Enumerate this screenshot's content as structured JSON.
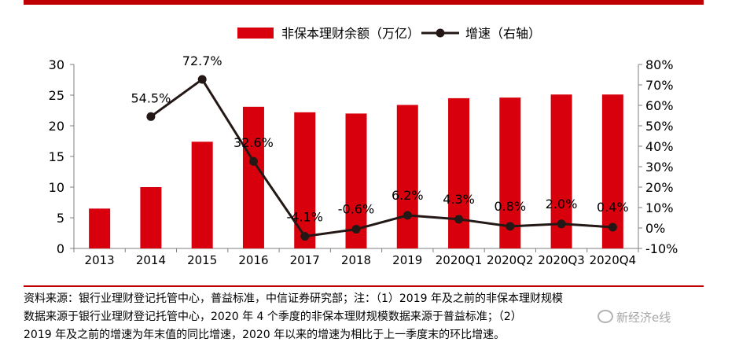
{
  "chart_data": {
    "type": "bar+line",
    "categories": [
      "2013",
      "2014",
      "2015",
      "2016",
      "2017",
      "2018",
      "2019",
      "2020Q1",
      "2020Q2",
      "2020Q3",
      "2020Q4"
    ],
    "series": [
      {
        "name": "非保本理财余额（万亿）",
        "type": "bar",
        "axis": "left",
        "values": [
          6.5,
          10.0,
          17.4,
          23.1,
          22.2,
          22.0,
          23.4,
          24.5,
          24.6,
          25.1,
          25.1
        ]
      },
      {
        "name": "增速（右轴）",
        "type": "line",
        "axis": "right",
        "values": [
          null,
          54.5,
          72.7,
          32.6,
          -4.1,
          -0.6,
          6.2,
          4.3,
          0.8,
          2.0,
          0.4
        ],
        "labels": [
          null,
          "54.5%",
          "72.7%",
          "32.6%",
          "-4.1%",
          "-0.6%",
          "6.2%",
          "4.3%",
          "0.8%",
          "2.0%",
          "0.4%"
        ]
      }
    ],
    "y_left": {
      "min": 0,
      "max": 30,
      "ticks": [
        "0",
        "5",
        "10",
        "15",
        "20",
        "25",
        "30"
      ]
    },
    "y_right": {
      "min": -10,
      "max": 80,
      "ticks": [
        "-10%",
        "0%",
        "10%",
        "20%",
        "30%",
        "40%",
        "50%",
        "60%",
        "70%",
        "80%"
      ]
    },
    "legend": [
      "非保本理财余额（万亿）",
      "增速（右轴）"
    ],
    "colors": {
      "bar": "#d9000d",
      "line": "#231815",
      "rule": "#c00000"
    }
  },
  "note": {
    "line1": "资料来源：银行业理财登记托管中心，普益标准，中信证券研究部；注：（1）2019 年及之前的非保本理财规模",
    "line2": "数据来源于银行业理财登记托管中心，2020 年 4 个季度的非保本理财规模数据来源于普益标准；（2）",
    "line3": "2019 年及之前的增速为年末值的同比增速，2020 年以来的增速为相比于上一季度末的环比增速。"
  },
  "watermark": "新经济e线"
}
